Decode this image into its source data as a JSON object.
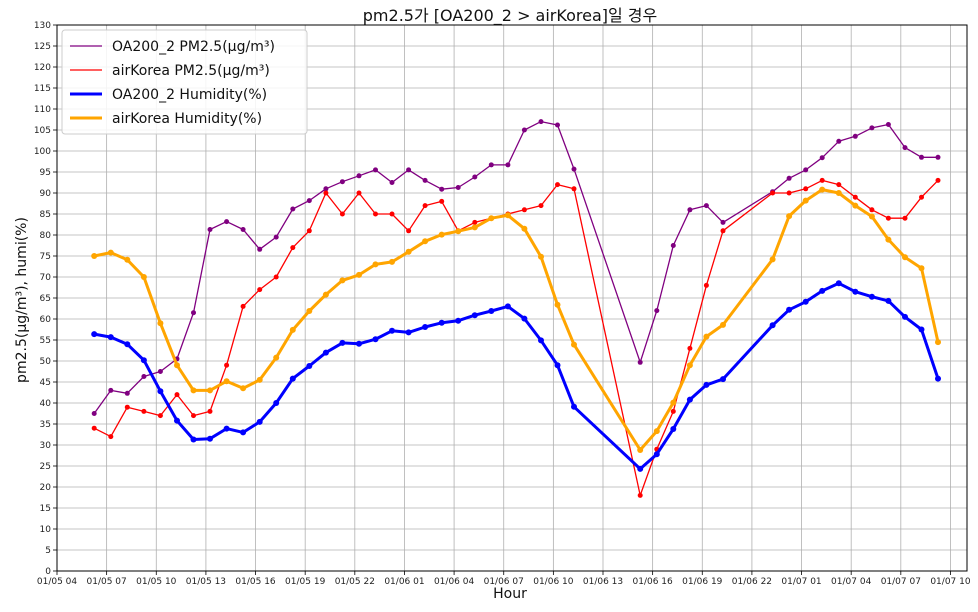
{
  "chart_data": {
    "type": "line",
    "title": "pm2.5가 [OA200_2 > airKorea]일 경우",
    "xlabel": "Hour",
    "ylabel": "pm2.5(μg/m³), humi(%)",
    "x_unit": "hours since 01/05 04:00",
    "xlim": [
      0,
      110
    ],
    "ylim": [
      0,
      130
    ],
    "y_ticks": [
      0,
      5,
      10,
      15,
      20,
      25,
      30,
      35,
      40,
      45,
      50,
      55,
      60,
      65,
      70,
      75,
      80,
      85,
      90,
      95,
      100,
      105,
      110,
      115,
      120,
      125,
      130
    ],
    "x_ticks": [
      {
        "value": 0,
        "label": "01/05 04"
      },
      {
        "value": 6,
        "label": "01/05 07"
      },
      {
        "value": 12,
        "label": "01/05 10"
      },
      {
        "value": 18,
        "label": "01/05 13"
      },
      {
        "value": 24,
        "label": "01/05 16"
      },
      {
        "value": 30,
        "label": "01/05 19"
      },
      {
        "value": 36,
        "label": "01/05 22"
      },
      {
        "value": 42,
        "label": "01/06 01"
      },
      {
        "value": 48,
        "label": "01/06 04"
      },
      {
        "value": 54,
        "label": "01/06 07"
      },
      {
        "value": 60,
        "label": "01/06 10"
      },
      {
        "value": 66,
        "label": "01/06 13"
      },
      {
        "value": 72,
        "label": "01/06 16"
      },
      {
        "value": 78,
        "label": "01/06 19"
      },
      {
        "value": 84,
        "label": "01/06 22"
      },
      {
        "value": 90,
        "label": "01/07 01"
      },
      {
        "value": 96,
        "label": "01/07 04"
      },
      {
        "value": 102,
        "label": "01/07 07"
      },
      {
        "value": 108,
        "label": "01/07 10"
      }
    ],
    "grid": true,
    "legend_position": "top-left",
    "series": [
      {
        "name": "OA200_2 PM2.5(μg/m³)",
        "color": "#800080",
        "line_width": 1.3,
        "marker_radius": 2.5,
        "points": [
          [
            4.5,
            37.5
          ],
          [
            6.5,
            43
          ],
          [
            8.5,
            42.3
          ],
          [
            10.5,
            46.3
          ],
          [
            12.5,
            47.5
          ],
          [
            14.5,
            50.5
          ],
          [
            16.5,
            61.5
          ],
          [
            18.5,
            81.3
          ],
          [
            20.5,
            83.2
          ],
          [
            22.5,
            81.3
          ],
          [
            24.5,
            76.6
          ],
          [
            26.5,
            79.5
          ],
          [
            28.5,
            86.2
          ],
          [
            30.5,
            88.2
          ],
          [
            32.5,
            91
          ],
          [
            34.5,
            92.7
          ],
          [
            36.5,
            94.1
          ],
          [
            38.5,
            95.5
          ],
          [
            40.5,
            92.5
          ],
          [
            42.5,
            95.5
          ],
          [
            44.5,
            93
          ],
          [
            46.5,
            90.9
          ],
          [
            48.5,
            91.3
          ],
          [
            50.5,
            93.8
          ],
          [
            52.5,
            96.7
          ],
          [
            54.5,
            96.7
          ],
          [
            56.5,
            105
          ],
          [
            58.5,
            107
          ],
          [
            60.5,
            106.2
          ],
          [
            62.5,
            95.7
          ],
          [
            70.5,
            49.7
          ],
          [
            72.5,
            62
          ],
          [
            74.5,
            77.5
          ],
          [
            76.5,
            86
          ],
          [
            78.5,
            87
          ],
          [
            80.5,
            83
          ],
          [
            86.5,
            90.3
          ],
          [
            88.5,
            93.5
          ],
          [
            90.5,
            95.5
          ],
          [
            92.5,
            98.4
          ],
          [
            94.5,
            102.3
          ],
          [
            96.5,
            103.5
          ],
          [
            98.5,
            105.5
          ],
          [
            100.5,
            106.3
          ],
          [
            102.5,
            100.8
          ],
          [
            104.5,
            98.5
          ],
          [
            106.5,
            98.5
          ]
        ]
      },
      {
        "name": "airKorea PM2.5(μg/m³)",
        "color": "#ff0000",
        "line_width": 1.3,
        "marker_radius": 2.5,
        "points": [
          [
            4.5,
            34
          ],
          [
            6.5,
            32
          ],
          [
            8.5,
            39
          ],
          [
            10.5,
            38
          ],
          [
            12.5,
            37
          ],
          [
            14.5,
            42
          ],
          [
            16.5,
            37
          ],
          [
            18.5,
            38
          ],
          [
            20.5,
            49
          ],
          [
            22.5,
            63
          ],
          [
            24.5,
            67
          ],
          [
            26.5,
            70
          ],
          [
            28.5,
            77
          ],
          [
            30.5,
            81
          ],
          [
            32.5,
            90
          ],
          [
            34.5,
            85
          ],
          [
            36.5,
            90
          ],
          [
            38.5,
            85
          ],
          [
            40.5,
            85
          ],
          [
            42.5,
            81
          ],
          [
            44.5,
            87
          ],
          [
            46.5,
            88
          ],
          [
            48.5,
            81
          ],
          [
            50.5,
            83
          ],
          [
            52.5,
            84
          ],
          [
            54.5,
            85
          ],
          [
            56.5,
            86
          ],
          [
            58.5,
            87
          ],
          [
            60.5,
            92
          ],
          [
            62.5,
            91
          ],
          [
            70.5,
            18
          ],
          [
            72.5,
            29
          ],
          [
            74.5,
            38
          ],
          [
            76.5,
            53
          ],
          [
            78.5,
            68
          ],
          [
            80.5,
            81
          ],
          [
            86.5,
            90
          ],
          [
            88.5,
            90
          ],
          [
            90.5,
            91
          ],
          [
            92.5,
            93
          ],
          [
            94.5,
            92
          ],
          [
            96.5,
            89
          ],
          [
            98.5,
            86
          ],
          [
            100.5,
            84
          ],
          [
            102.5,
            84
          ],
          [
            104.5,
            89
          ],
          [
            106.5,
            93
          ]
        ]
      },
      {
        "name": "OA200_2 Humidity(%)",
        "color": "#0000ff",
        "line_width": 3,
        "marker_radius": 3,
        "points": [
          [
            4.5,
            56.4
          ],
          [
            6.5,
            55.7
          ],
          [
            8.5,
            54
          ],
          [
            10.5,
            50.2
          ],
          [
            12.5,
            42.8
          ],
          [
            14.5,
            35.8
          ],
          [
            16.5,
            31.3
          ],
          [
            18.5,
            31.5
          ],
          [
            20.5,
            33.9
          ],
          [
            22.5,
            33
          ],
          [
            24.5,
            35.5
          ],
          [
            26.5,
            40
          ],
          [
            28.5,
            45.8
          ],
          [
            30.5,
            48.8
          ],
          [
            32.5,
            52
          ],
          [
            34.5,
            54.3
          ],
          [
            36.5,
            54.1
          ],
          [
            38.5,
            55.2
          ],
          [
            40.5,
            57.2
          ],
          [
            42.5,
            56.8
          ],
          [
            44.5,
            58.1
          ],
          [
            46.5,
            59.1
          ],
          [
            48.5,
            59.6
          ],
          [
            50.5,
            60.9
          ],
          [
            52.5,
            61.9
          ],
          [
            54.5,
            63
          ],
          [
            56.5,
            60.1
          ],
          [
            58.5,
            54.9
          ],
          [
            60.5,
            49
          ],
          [
            62.5,
            39.1
          ],
          [
            70.5,
            24.3
          ],
          [
            72.5,
            27.8
          ],
          [
            74.5,
            33.8
          ],
          [
            76.5,
            40.8
          ],
          [
            78.5,
            44.3
          ],
          [
            80.5,
            45.7
          ],
          [
            86.5,
            58.5
          ],
          [
            88.5,
            62.2
          ],
          [
            90.5,
            64.1
          ],
          [
            92.5,
            66.7
          ],
          [
            94.5,
            68.5
          ],
          [
            96.5,
            66.5
          ],
          [
            98.5,
            65.3
          ],
          [
            100.5,
            64.3
          ],
          [
            102.5,
            60.5
          ],
          [
            104.5,
            57.5
          ],
          [
            106.5,
            45.8
          ]
        ]
      },
      {
        "name": "airKorea Humidity(%)",
        "color": "#ffa500",
        "line_width": 3,
        "marker_radius": 3,
        "points": [
          [
            4.5,
            75
          ],
          [
            6.5,
            75.8
          ],
          [
            8.5,
            74.1
          ],
          [
            10.5,
            70
          ],
          [
            12.5,
            59
          ],
          [
            14.5,
            49
          ],
          [
            16.5,
            43
          ],
          [
            18.5,
            43
          ],
          [
            20.5,
            45.2
          ],
          [
            22.5,
            43.5
          ],
          [
            24.5,
            45.5
          ],
          [
            26.5,
            50.8
          ],
          [
            28.5,
            57.4
          ],
          [
            30.5,
            61.9
          ],
          [
            32.5,
            65.8
          ],
          [
            34.5,
            69.2
          ],
          [
            36.5,
            70.5
          ],
          [
            38.5,
            73
          ],
          [
            40.5,
            73.6
          ],
          [
            42.5,
            76
          ],
          [
            44.5,
            78.5
          ],
          [
            46.5,
            80.1
          ],
          [
            48.5,
            80.9
          ],
          [
            50.5,
            81.8
          ],
          [
            52.5,
            84
          ],
          [
            54.5,
            84.7
          ],
          [
            56.5,
            81.5
          ],
          [
            58.5,
            74.8
          ],
          [
            60.5,
            63.4
          ],
          [
            62.5,
            53.9
          ],
          [
            70.5,
            28.8
          ],
          [
            72.5,
            33.3
          ],
          [
            74.5,
            40.1
          ],
          [
            76.5,
            49
          ],
          [
            78.5,
            55.8
          ],
          [
            80.5,
            58.6
          ],
          [
            86.5,
            74.2
          ],
          [
            88.5,
            84.5
          ],
          [
            90.5,
            88.2
          ],
          [
            92.5,
            90.8
          ],
          [
            94.5,
            90
          ],
          [
            96.5,
            87
          ],
          [
            98.5,
            84.4
          ],
          [
            100.5,
            78.9
          ],
          [
            102.5,
            74.7
          ],
          [
            104.5,
            72.1
          ],
          [
            106.5,
            54.5
          ]
        ]
      }
    ]
  }
}
